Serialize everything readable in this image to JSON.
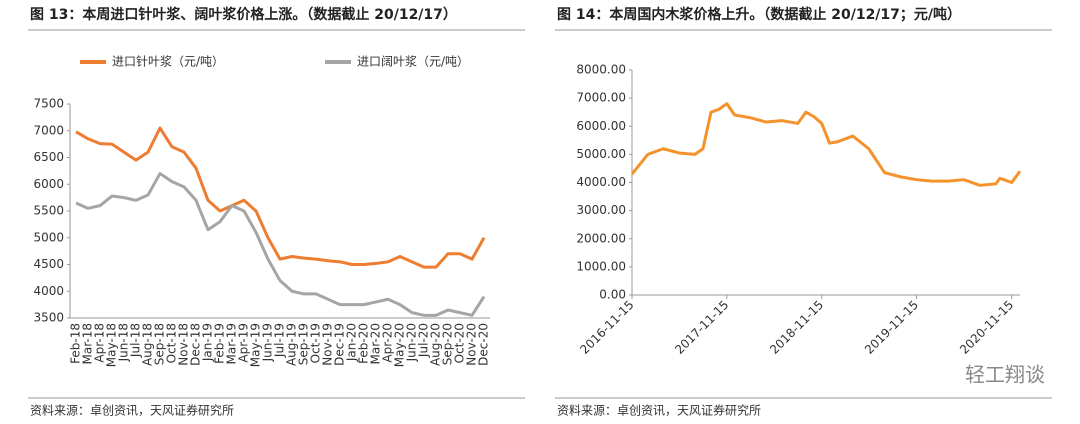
{
  "chart_data": [
    {
      "type": "line",
      "title": "图 13：本周进口针叶浆、阔叶浆价格上涨。（数据截止 20/12/17）",
      "categories": [
        "Feb-18",
        "Mar-18",
        "Apr-18",
        "May-18",
        "Jun-18",
        "Jul-18",
        "Aug-18",
        "Sep-18",
        "Oct-18",
        "Nov-18",
        "Dec-18",
        "Jan-19",
        "Feb-19",
        "Mar-19",
        "Apr-19",
        "May-19",
        "Jun-19",
        "Jul-19",
        "Aug-19",
        "Sep-19",
        "Oct-19",
        "Nov-19",
        "Dec-19",
        "Jan-20",
        "Feb-20",
        "Mar-20",
        "Apr-20",
        "May-20",
        "Jun-20",
        "Jul-20",
        "Aug-20",
        "Sep-20",
        "Oct-20",
        "Nov-20",
        "Dec-20"
      ],
      "series": [
        {
          "name": "进口针叶浆（元/吨）",
          "color": "#ed7d31",
          "values": [
            6980,
            6850,
            6760,
            6750,
            6600,
            6450,
            6600,
            7050,
            6700,
            6600,
            6300,
            5700,
            5500,
            5600,
            5700,
            5500,
            5000,
            4600,
            4650,
            4620,
            4600,
            4570,
            4550,
            4500,
            4500,
            4520,
            4550,
            4650,
            4550,
            4450,
            4450,
            4700,
            4700,
            4600,
            5000
          ]
        },
        {
          "name": "进口阔叶浆（元/吨）",
          "color": "#a5a5a5",
          "values": [
            5650,
            5550,
            5600,
            5780,
            5750,
            5700,
            5800,
            6200,
            6050,
            5950,
            5700,
            5150,
            5300,
            5600,
            5500,
            5100,
            4600,
            4200,
            4000,
            3950,
            3950,
            3850,
            3750,
            3750,
            3750,
            3800,
            3850,
            3750,
            3600,
            3550,
            3550,
            3650,
            3600,
            3550,
            3900
          ]
        }
      ],
      "ylim": [
        3500,
        7500
      ],
      "yticks": [
        3500,
        4000,
        4500,
        5000,
        5500,
        6000,
        6500,
        7000,
        7500
      ],
      "source": "资料来源：卓创资讯，天风证券研究所"
    },
    {
      "type": "line",
      "title": "图 14：本周国内木浆价格上升。（数据截止 20/12/17；元/吨）",
      "x": [
        "2016-11-15",
        "2017-01-15",
        "2017-03-15",
        "2017-05-15",
        "2017-07-15",
        "2017-08-15",
        "2017-09-15",
        "2017-10-15",
        "2017-11-15",
        "2017-12-15",
        "2018-02-15",
        "2018-04-15",
        "2018-06-15",
        "2018-08-15",
        "2018-09-15",
        "2018-10-15",
        "2018-11-15",
        "2018-12-15",
        "2019-01-15",
        "2019-03-15",
        "2019-05-15",
        "2019-07-15",
        "2019-09-15",
        "2019-11-15",
        "2020-01-15",
        "2020-03-15",
        "2020-05-15",
        "2020-07-15",
        "2020-09-15",
        "2020-10-01",
        "2020-11-15",
        "2020-12-17"
      ],
      "series": [
        {
          "color": "#f4922c",
          "values": [
            4300,
            5000,
            5200,
            5050,
            5000,
            5200,
            6500,
            6600,
            6800,
            6400,
            6300,
            6150,
            6200,
            6100,
            6500,
            6350,
            6100,
            5400,
            5450,
            5650,
            5200,
            4350,
            4200,
            4100,
            4050,
            4050,
            4100,
            3900,
            3950,
            4150,
            4000,
            4400
          ]
        }
      ],
      "xlim": [
        "2016-11-15",
        "2020-12-17"
      ],
      "xticks": [
        "2016-11-15",
        "2017-11-15",
        "2018-11-15",
        "2019-11-15",
        "2020-11-15"
      ],
      "ylim": [
        0,
        8000
      ],
      "yticks": [
        {
          "value": 0,
          "label": "0.00"
        },
        {
          "value": 1000,
          "label": "1000.00"
        },
        {
          "value": 2000,
          "label": "2000.00"
        },
        {
          "value": 3000,
          "label": "3000.00"
        },
        {
          "value": 4000,
          "label": "4000.00"
        },
        {
          "value": 5000,
          "label": "5000.00"
        },
        {
          "value": 6000,
          "label": "6000.00"
        },
        {
          "value": 7000,
          "label": "7000.00"
        },
        {
          "value": 8000,
          "label": "8000.00"
        }
      ],
      "source": "资料来源：卓创资讯，天风证券研究所",
      "watermark": "轻工翔谈"
    }
  ]
}
